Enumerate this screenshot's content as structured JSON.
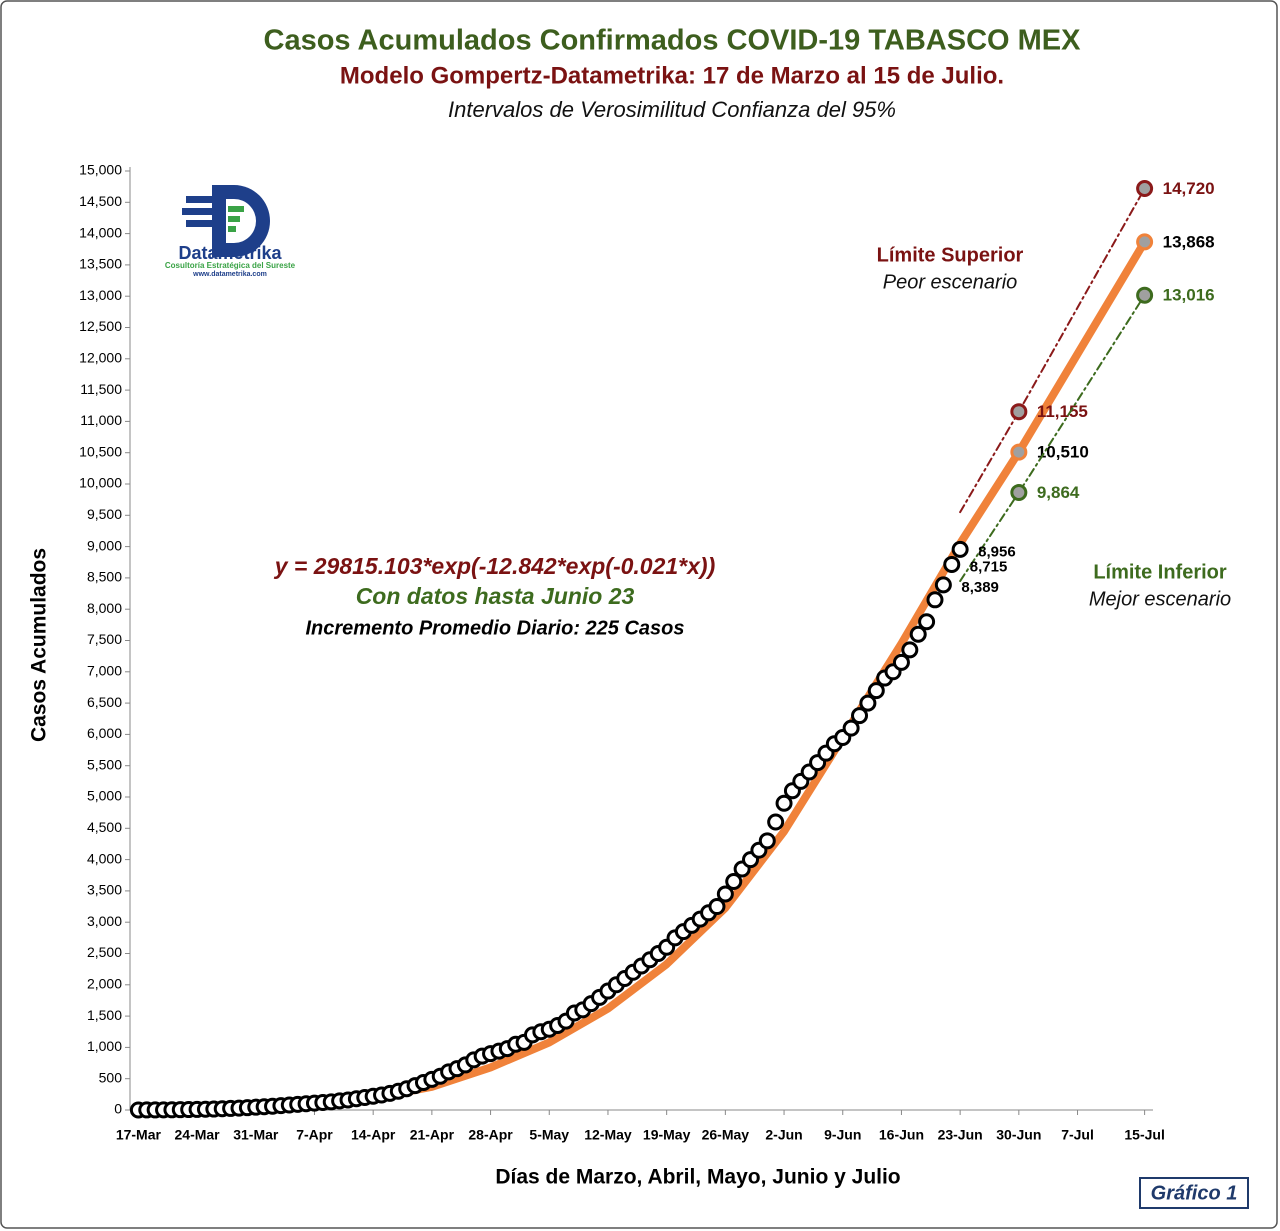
{
  "chart_data": {
    "type": "line",
    "title": "Casos Acumulados Confirmados COVID-19 TABASCO MEX",
    "subtitle": "Modelo Gompertz-Datametrika: 17 de Marzo al 15 de Julio.",
    "subtitle2": "Intervalos de Verosimilitud Confianza del 95%",
    "xlabel": "Días de Marzo, Abril, Mayo, Junio y Julio",
    "ylabel": "Casos Acumulados",
    "figure_label": "Gráfico 1",
    "logo": {
      "name": "Datametrika",
      "tagline": "Cosultoría Estratégica del Sureste",
      "url": "www.datametrika.com"
    },
    "annotations": [
      {
        "text": "y = 29815.103*exp(-12.842*exp(-0.021*x))",
        "color": "#7a1212"
      },
      {
        "text": "Con datos hasta Junio 23",
        "color": "#3d6b1e"
      },
      {
        "text": "Incremento Promedio Diario: 225 Casos",
        "color": "#000000"
      }
    ],
    "xlim": [
      -1,
      121
    ],
    "ylim": [
      0,
      15000
    ],
    "xticks": [
      {
        "value": 0,
        "label": "17-Mar"
      },
      {
        "value": 7,
        "label": "24-Mar"
      },
      {
        "value": 14,
        "label": "31-Mar"
      },
      {
        "value": 21,
        "label": "7-Apr"
      },
      {
        "value": 28,
        "label": "14-Apr"
      },
      {
        "value": 35,
        "label": "21-Apr"
      },
      {
        "value": 42,
        "label": "28-Apr"
      },
      {
        "value": 49,
        "label": "5-May"
      },
      {
        "value": 56,
        "label": "12-May"
      },
      {
        "value": 63,
        "label": "19-May"
      },
      {
        "value": 70,
        "label": "26-May"
      },
      {
        "value": 77,
        "label": "2-Jun"
      },
      {
        "value": 84,
        "label": "9-Jun"
      },
      {
        "value": 91,
        "label": "16-Jun"
      },
      {
        "value": 98,
        "label": "23-Jun"
      },
      {
        "value": 105,
        "label": "30-Jun"
      },
      {
        "value": 112,
        "label": "7-Jul"
      },
      {
        "value": 120,
        "label": "15-Jul"
      }
    ],
    "yticks": [
      0,
      500,
      {
        "value": 1000,
        "label": "1,000"
      },
      {
        "value": 1500,
        "label": "1,500"
      },
      {
        "value": 2000,
        "label": "2,000"
      },
      {
        "value": 2500,
        "label": "2,500"
      },
      {
        "value": 3000,
        "label": "3,000"
      },
      {
        "value": 3500,
        "label": "3,500"
      },
      {
        "value": 4000,
        "label": "4,000"
      },
      {
        "value": 4500,
        "label": "4,500"
      },
      {
        "value": 5000,
        "label": "5,000"
      },
      {
        "value": 5500,
        "label": "5,500"
      },
      {
        "value": 6000,
        "label": "6,000"
      },
      {
        "value": 6500,
        "label": "6,500"
      },
      {
        "value": 7000,
        "label": "7,000"
      },
      {
        "value": 7500,
        "label": "7,500"
      },
      {
        "value": 8000,
        "label": "8,000"
      },
      {
        "value": 8500,
        "label": "8,500"
      },
      {
        "value": 9000,
        "label": "9,000"
      },
      {
        "value": 9500,
        "label": "9,500"
      },
      {
        "value": 10000,
        "label": "10,000"
      },
      {
        "value": 10500,
        "label": "10,500"
      },
      {
        "value": 11000,
        "label": "11,000"
      },
      {
        "value": 11500,
        "label": "11,500"
      },
      {
        "value": 12000,
        "label": "12,000"
      },
      {
        "value": 12500,
        "label": "12,500"
      },
      {
        "value": 13000,
        "label": "13,000"
      },
      {
        "value": 13500,
        "label": "13,500"
      },
      {
        "value": 14000,
        "label": "14,000"
      },
      {
        "value": 14500,
        "label": "14,500"
      },
      {
        "value": 15000,
        "label": "15,000"
      }
    ],
    "grid": false,
    "series": [
      {
        "mode": "line",
        "color": "#f0823a",
        "label_color": "#000000",
        "x": [
          0,
          7,
          14,
          21,
          28,
          35,
          42,
          49,
          56,
          63,
          70,
          77,
          84,
          91,
          98,
          105,
          120
        ],
        "values": [
          0,
          10,
          40,
          90,
          190,
          370,
          680,
          1080,
          1620,
          2330,
          3230,
          4450,
          5950,
          7450,
          9050,
          10510,
          13868
        ],
        "value_labels": [
          null,
          null,
          null,
          null,
          null,
          null,
          null,
          null,
          null,
          null,
          null,
          null,
          null,
          null,
          null,
          "10,510",
          "13,868"
        ]
      },
      {
        "name": "Límite Superior",
        "description": "Peor escenario",
        "mode": "dashdot",
        "color": "#8b1a1a",
        "label_color": "#7a1212",
        "x": [
          98,
          105,
          120
        ],
        "values": [
          9550,
          11155,
          14720
        ],
        "value_labels": [
          null,
          "11,155",
          "14,720"
        ]
      },
      {
        "name": "Límite Inferior",
        "description": "Mejor escenario",
        "mode": "dashdot",
        "color": "#3d6b1e",
        "label_color": "#3d6b1e",
        "x": [
          98,
          105,
          120
        ],
        "values": [
          8450,
          9864,
          13016
        ],
        "value_labels": [
          null,
          "9,864",
          "13,016"
        ]
      },
      {
        "mode": "markers",
        "color": "#000000",
        "label_color": "#000000",
        "x": [
          0,
          1,
          2,
          3,
          4,
          5,
          6,
          7,
          8,
          9,
          10,
          11,
          12,
          13,
          14,
          15,
          16,
          17,
          18,
          19,
          20,
          21,
          22,
          23,
          24,
          25,
          26,
          27,
          28,
          29,
          30,
          31,
          32,
          33,
          34,
          35,
          36,
          37,
          38,
          39,
          40,
          41,
          42,
          43,
          44,
          45,
          46,
          47,
          48,
          49,
          50,
          51,
          52,
          53,
          54,
          55,
          56,
          57,
          58,
          59,
          60,
          61,
          62,
          63,
          64,
          65,
          66,
          67,
          68,
          69,
          70,
          71,
          72,
          73,
          74,
          75,
          76,
          77,
          78,
          79,
          80,
          81,
          82,
          83,
          84,
          85,
          86,
          87,
          88,
          89,
          90,
          91,
          92,
          93,
          94,
          95,
          96,
          97,
          98
        ],
        "values": [
          0,
          1,
          1,
          2,
          3,
          5,
          7,
          9,
          12,
          15,
          20,
          25,
          30,
          37,
          45,
          52,
          60,
          70,
          80,
          90,
          100,
          110,
          120,
          130,
          145,
          160,
          180,
          200,
          220,
          240,
          265,
          300,
          340,
          390,
          440,
          490,
          540,
          610,
          660,
          720,
          800,
          860,
          900,
          940,
          980,
          1050,
          1080,
          1200,
          1250,
          1290,
          1350,
          1420,
          1550,
          1600,
          1700,
          1800,
          1900,
          2000,
          2100,
          2200,
          2300,
          2400,
          2500,
          2600,
          2750,
          2850,
          2950,
          3050,
          3150,
          3250,
          3450,
          3650,
          3850,
          4000,
          4150,
          4300,
          4600,
          4900,
          5100,
          5250,
          5400,
          5550,
          5700,
          5850,
          5950,
          6100,
          6300,
          6500,
          6700,
          6900,
          7000,
          7150,
          7350,
          7600,
          7800,
          8150,
          8389,
          8715,
          8956
        ],
        "value_labels": [
          null,
          null,
          null,
          null,
          null,
          null,
          null,
          null,
          null,
          null,
          null,
          null,
          null,
          null,
          null,
          null,
          null,
          null,
          null,
          null,
          null,
          null,
          null,
          null,
          null,
          null,
          null,
          null,
          null,
          null,
          null,
          null,
          null,
          null,
          null,
          null,
          null,
          null,
          null,
          null,
          null,
          null,
          null,
          null,
          null,
          null,
          null,
          null,
          null,
          null,
          null,
          null,
          null,
          null,
          null,
          null,
          null,
          null,
          null,
          null,
          null,
          null,
          null,
          null,
          null,
          null,
          null,
          null,
          null,
          null,
          null,
          null,
          null,
          null,
          null,
          null,
          null,
          null,
          null,
          null,
          null,
          null,
          null,
          null,
          null,
          null,
          null,
          null,
          null,
          null,
          null,
          null,
          null,
          null,
          null,
          null,
          "8,389",
          "8,715",
          "8,956"
        ]
      }
    ]
  }
}
